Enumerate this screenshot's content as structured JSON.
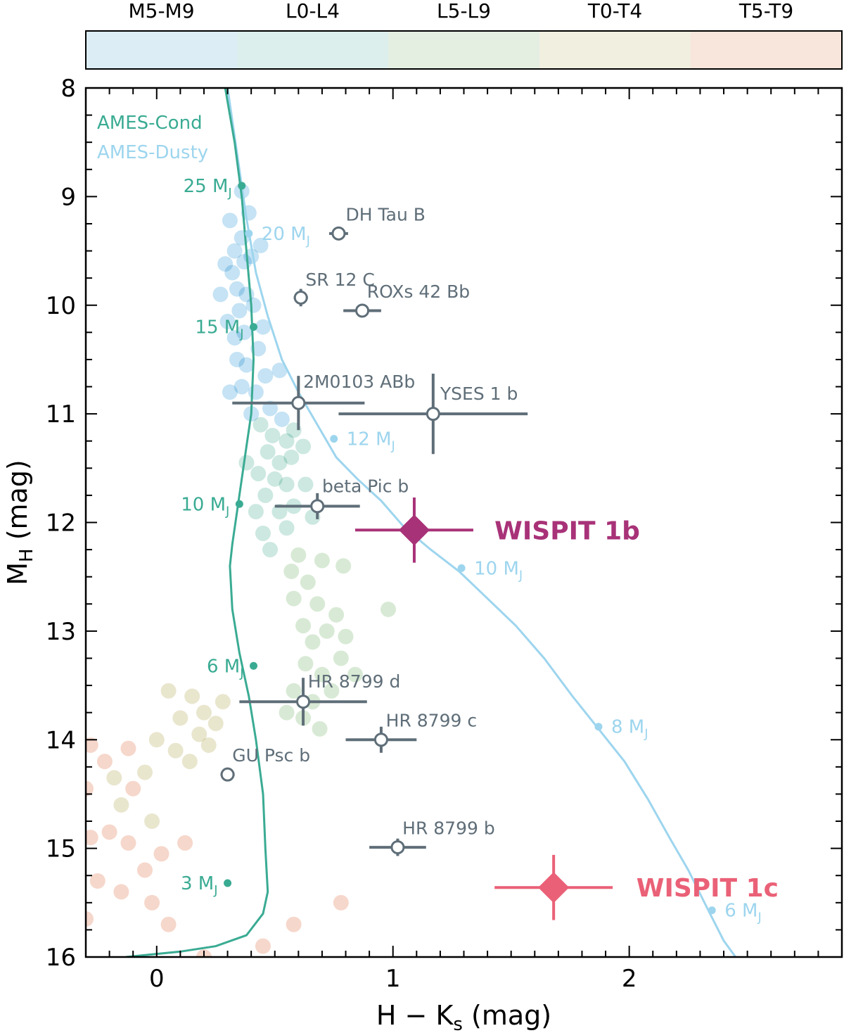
{
  "chart_data": {
    "type": "scatter",
    "xlabel": "H − K",
    "xlabel_sub": "s",
    "xlabel_unit": " (mag)",
    "ylabel": "M",
    "ylabel_sub": "H",
    "ylabel_unit": " (mag)",
    "xlim": [
      -0.3,
      2.9
    ],
    "ylim": [
      16,
      8
    ],
    "y_inverted": true,
    "xticks": [
      0,
      1,
      2
    ],
    "yticks": [
      8,
      9,
      10,
      11,
      12,
      13,
      14,
      15,
      16
    ],
    "spectral_bands": [
      {
        "label": "M5-M9",
        "color": "#dcedf5"
      },
      {
        "label": "L0-L4",
        "color": "#dcefec"
      },
      {
        "label": "L5-L9",
        "color": "#e4efe2"
      },
      {
        "label": "T0-T4",
        "color": "#f1efe0"
      },
      {
        "label": "T5-T9",
        "color": "#f8e5db"
      }
    ],
    "legend": [
      {
        "label": "AMES-Cond",
        "color": "#3aab93"
      },
      {
        "label": "AMES-Dusty",
        "color": "#9dd5ee"
      }
    ],
    "ames_cond_track": {
      "color": "#3aab93",
      "x": [
        0.29,
        0.33,
        0.36,
        0.38,
        0.4,
        0.41,
        0.4,
        0.38,
        0.36,
        0.34,
        0.32,
        0.31,
        0.32,
        0.35,
        0.39,
        0.42,
        0.45,
        0.46,
        0.47,
        0.45,
        0.38,
        0.25,
        0.1,
        -0.13
      ],
      "y": [
        8.0,
        8.5,
        9.0,
        9.5,
        10.0,
        10.5,
        11.0,
        11.3,
        11.6,
        11.9,
        12.2,
        12.4,
        12.8,
        13.2,
        13.6,
        14.0,
        14.5,
        15.0,
        15.4,
        15.6,
        15.8,
        15.9,
        15.95,
        16.0
      ],
      "mass_points": [
        {
          "x": 0.36,
          "y": 8.9,
          "label": "25 M",
          "sub": "J"
        },
        {
          "x": 0.41,
          "y": 10.2,
          "label": "15 M",
          "sub": "J"
        },
        {
          "x": 0.35,
          "y": 11.83,
          "label": "10 M",
          "sub": "J"
        },
        {
          "x": 0.41,
          "y": 13.32,
          "label": "6 M",
          "sub": "J"
        },
        {
          "x": 0.3,
          "y": 15.32,
          "label": "3 M",
          "sub": "J"
        }
      ]
    },
    "ames_dusty_track": {
      "color": "#9dd5ee",
      "x": [
        0.3,
        0.34,
        0.38,
        0.42,
        0.47,
        0.53,
        0.6,
        0.68,
        0.76,
        0.85,
        0.95,
        1.05,
        1.16,
        1.28,
        1.4,
        1.52,
        1.64,
        1.76,
        1.87,
        1.98,
        2.08,
        2.17,
        2.25,
        2.33,
        2.4,
        2.45
      ],
      "y": [
        8.0,
        8.6,
        9.2,
        9.7,
        10.1,
        10.5,
        10.8,
        11.1,
        11.4,
        11.6,
        11.8,
        12.05,
        12.25,
        12.45,
        12.7,
        12.95,
        13.25,
        13.6,
        13.9,
        14.2,
        14.55,
        14.9,
        15.2,
        15.55,
        15.85,
        16.0
      ],
      "mass_points": [
        {
          "x": 0.39,
          "y": 9.34,
          "label": "20 M",
          "sub": "J"
        },
        {
          "x": 0.75,
          "y": 11.23,
          "label": "12 M",
          "sub": "J"
        },
        {
          "x": 1.29,
          "y": 12.42,
          "label": "10 M",
          "sub": "J"
        },
        {
          "x": 1.87,
          "y": 13.88,
          "label": "8 M",
          "sub": "J"
        },
        {
          "x": 2.35,
          "y": 15.57,
          "label": "6 M",
          "sub": "J"
        }
      ]
    },
    "field_dwarfs": [
      {
        "x": 0.31,
        "y": 9.22,
        "band": 0
      },
      {
        "x": 0.33,
        "y": 9.5,
        "band": 0
      },
      {
        "x": 0.36,
        "y": 9.38,
        "band": 0
      },
      {
        "x": 0.29,
        "y": 9.62,
        "band": 0
      },
      {
        "x": 0.32,
        "y": 9.7,
        "band": 0
      },
      {
        "x": 0.34,
        "y": 9.85,
        "band": 0
      },
      {
        "x": 0.37,
        "y": 9.6,
        "band": 0
      },
      {
        "x": 0.4,
        "y": 9.55,
        "band": 0
      },
      {
        "x": 0.38,
        "y": 9.9,
        "band": 0
      },
      {
        "x": 0.35,
        "y": 10.05,
        "band": 0
      },
      {
        "x": 0.3,
        "y": 10.15,
        "band": 0
      },
      {
        "x": 0.27,
        "y": 9.9,
        "band": 0
      },
      {
        "x": 0.33,
        "y": 10.3,
        "band": 0
      },
      {
        "x": 0.37,
        "y": 10.25,
        "band": 0
      },
      {
        "x": 0.41,
        "y": 10.0,
        "band": 0
      },
      {
        "x": 0.43,
        "y": 10.4,
        "band": 0
      },
      {
        "x": 0.38,
        "y": 10.55,
        "band": 0
      },
      {
        "x": 0.34,
        "y": 10.5,
        "band": 0
      },
      {
        "x": 0.45,
        "y": 10.2,
        "band": 0
      },
      {
        "x": 0.39,
        "y": 9.15,
        "band": 0
      },
      {
        "x": 0.44,
        "y": 9.45,
        "band": 0
      },
      {
        "x": 0.36,
        "y": 8.95,
        "band": 0
      },
      {
        "x": 0.46,
        "y": 10.65,
        "band": 0
      },
      {
        "x": 0.42,
        "y": 10.8,
        "band": 0
      },
      {
        "x": 0.31,
        "y": 10.8,
        "band": 0
      },
      {
        "x": 0.36,
        "y": 10.75,
        "band": 0
      },
      {
        "x": 0.48,
        "y": 10.95,
        "band": 0
      },
      {
        "x": 0.4,
        "y": 11.0,
        "band": 0
      },
      {
        "x": 0.52,
        "y": 10.6,
        "band": 0
      },
      {
        "x": 0.53,
        "y": 11.05,
        "band": 0
      },
      {
        "x": 0.44,
        "y": 11.1,
        "band": 1
      },
      {
        "x": 0.49,
        "y": 11.2,
        "band": 1
      },
      {
        "x": 0.55,
        "y": 11.25,
        "band": 1
      },
      {
        "x": 0.58,
        "y": 11.15,
        "band": 1
      },
      {
        "x": 0.47,
        "y": 11.35,
        "band": 1
      },
      {
        "x": 0.52,
        "y": 11.45,
        "band": 1
      },
      {
        "x": 0.57,
        "y": 11.4,
        "band": 1
      },
      {
        "x": 0.62,
        "y": 11.3,
        "band": 1
      },
      {
        "x": 0.43,
        "y": 11.55,
        "band": 1
      },
      {
        "x": 0.5,
        "y": 11.6,
        "band": 1
      },
      {
        "x": 0.55,
        "y": 11.65,
        "band": 1
      },
      {
        "x": 0.46,
        "y": 11.75,
        "band": 1
      },
      {
        "x": 0.42,
        "y": 11.9,
        "band": 1
      },
      {
        "x": 0.52,
        "y": 11.9,
        "band": 1
      },
      {
        "x": 0.58,
        "y": 11.85,
        "band": 1
      },
      {
        "x": 0.45,
        "y": 12.1,
        "band": 1
      },
      {
        "x": 0.55,
        "y": 12.05,
        "band": 1
      },
      {
        "x": 0.63,
        "y": 11.65,
        "band": 1
      },
      {
        "x": 0.66,
        "y": 11.95,
        "band": 1
      },
      {
        "x": 0.48,
        "y": 12.25,
        "band": 1
      },
      {
        "x": 0.38,
        "y": 11.45,
        "band": 1
      },
      {
        "x": 0.6,
        "y": 12.3,
        "band": 2
      },
      {
        "x": 0.64,
        "y": 12.55,
        "band": 2
      },
      {
        "x": 0.58,
        "y": 12.7,
        "band": 2
      },
      {
        "x": 0.68,
        "y": 12.75,
        "band": 2
      },
      {
        "x": 0.7,
        "y": 12.35,
        "band": 2
      },
      {
        "x": 0.62,
        "y": 12.95,
        "band": 2
      },
      {
        "x": 0.66,
        "y": 13.1,
        "band": 2
      },
      {
        "x": 0.72,
        "y": 13.0,
        "band": 2
      },
      {
        "x": 0.76,
        "y": 12.85,
        "band": 2
      },
      {
        "x": 0.8,
        "y": 13.05,
        "band": 2
      },
      {
        "x": 0.63,
        "y": 13.3,
        "band": 2
      },
      {
        "x": 0.7,
        "y": 13.4,
        "band": 2
      },
      {
        "x": 0.78,
        "y": 13.25,
        "band": 2
      },
      {
        "x": 0.58,
        "y": 13.55,
        "band": 2
      },
      {
        "x": 0.66,
        "y": 13.65,
        "band": 2
      },
      {
        "x": 0.74,
        "y": 13.55,
        "band": 2
      },
      {
        "x": 0.62,
        "y": 13.8,
        "band": 2
      },
      {
        "x": 0.69,
        "y": 13.9,
        "band": 2
      },
      {
        "x": 0.55,
        "y": 13.75,
        "band": 2
      },
      {
        "x": 0.84,
        "y": 13.4,
        "band": 2
      },
      {
        "x": 0.98,
        "y": 12.8,
        "band": 2
      },
      {
        "x": 0.79,
        "y": 12.4,
        "band": 2
      },
      {
        "x": 0.57,
        "y": 12.45,
        "band": 2
      },
      {
        "x": 0.05,
        "y": 13.55,
        "band": 3
      },
      {
        "x": 0.15,
        "y": 13.6,
        "band": 3
      },
      {
        "x": 0.1,
        "y": 13.8,
        "band": 3
      },
      {
        "x": 0.2,
        "y": 13.75,
        "band": 3
      },
      {
        "x": 0.25,
        "y": 13.85,
        "band": 3
      },
      {
        "x": 0.18,
        "y": 13.95,
        "band": 3
      },
      {
        "x": 0.0,
        "y": 14.0,
        "band": 3
      },
      {
        "x": 0.08,
        "y": 14.1,
        "band": 3
      },
      {
        "x": 0.22,
        "y": 14.05,
        "band": 3
      },
      {
        "x": 0.28,
        "y": 13.65,
        "band": 3
      },
      {
        "x": -0.05,
        "y": 14.3,
        "band": 3
      },
      {
        "x": 0.14,
        "y": 14.2,
        "band": 3
      },
      {
        "x": -0.15,
        "y": 14.6,
        "band": 3
      },
      {
        "x": -0.02,
        "y": 14.75,
        "band": 3
      },
      {
        "x": -0.18,
        "y": 14.35,
        "band": 3
      },
      {
        "x": -0.28,
        "y": 14.05,
        "band": 4
      },
      {
        "x": -0.22,
        "y": 14.2,
        "band": 4
      },
      {
        "x": -0.3,
        "y": 14.45,
        "band": 4
      },
      {
        "x": -0.1,
        "y": 14.45,
        "band": 4
      },
      {
        "x": -0.2,
        "y": 14.85,
        "band": 4
      },
      {
        "x": -0.12,
        "y": 14.95,
        "band": 4
      },
      {
        "x": -0.28,
        "y": 14.9,
        "band": 4
      },
      {
        "x": 0.02,
        "y": 15.05,
        "band": 4
      },
      {
        "x": -0.05,
        "y": 15.2,
        "band": 4
      },
      {
        "x": 0.12,
        "y": 14.95,
        "band": 4
      },
      {
        "x": -0.25,
        "y": 15.3,
        "band": 4
      },
      {
        "x": -0.15,
        "y": 15.4,
        "band": 4
      },
      {
        "x": -0.02,
        "y": 15.5,
        "band": 4
      },
      {
        "x": -0.3,
        "y": 15.65,
        "band": 4
      },
      {
        "x": 0.05,
        "y": 15.7,
        "band": 4
      },
      {
        "x": 0.45,
        "y": 15.9,
        "band": 4
      },
      {
        "x": 0.78,
        "y": 15.5,
        "band": 4
      },
      {
        "x": 0.58,
        "y": 15.7,
        "band": 4
      },
      {
        "x": 0.2,
        "y": 16.0,
        "band": 4
      },
      {
        "x": -0.12,
        "y": 14.08,
        "band": 4
      }
    ],
    "objects": [
      {
        "name": "DH Tau B",
        "x": 0.77,
        "y": 9.34,
        "xerr": 0.04,
        "yerr": 0.03,
        "lx": 0.8,
        "ly": 9.22
      },
      {
        "name": "SR 12 C",
        "x": 0.61,
        "y": 9.93,
        "xerr": 0.03,
        "yerr": 0.08,
        "lx": 0.63,
        "ly": 9.82
      },
      {
        "name": "ROXs 42 Bb",
        "x": 0.87,
        "y": 10.05,
        "xerr": 0.08,
        "yerr": 0.02,
        "lx": 0.89,
        "ly": 9.93
      },
      {
        "name": "2M0103 ABb",
        "x": 0.6,
        "y": 10.9,
        "xerr": 0.28,
        "yerr": 0.25,
        "lx": 0.62,
        "ly": 10.76
      },
      {
        "name": "YSES 1 b",
        "x": 1.17,
        "y": 11.0,
        "xerr": 0.4,
        "yerr": 0.37,
        "lx": 1.2,
        "ly": 10.87
      },
      {
        "name": "beta Pic b",
        "x": 0.68,
        "y": 11.85,
        "xerr": 0.18,
        "yerr": 0.12,
        "lx": 0.7,
        "ly": 11.72
      },
      {
        "name": "HR 8799 d",
        "x": 0.62,
        "y": 13.65,
        "xerr": 0.27,
        "yerr": 0.22,
        "lx": 0.64,
        "ly": 13.52
      },
      {
        "name": "HR 8799 c",
        "x": 0.95,
        "y": 14.0,
        "xerr": 0.15,
        "yerr": 0.12,
        "lx": 0.97,
        "ly": 13.88
      },
      {
        "name": "GU Psc b",
        "x": 0.3,
        "y": 14.32,
        "xerr": 0.03,
        "yerr": 0.03,
        "lx": 0.32,
        "ly": 14.2
      },
      {
        "name": "HR 8799 b",
        "x": 1.02,
        "y": 14.99,
        "xerr": 0.12,
        "yerr": 0.08,
        "lx": 1.04,
        "ly": 14.87
      }
    ],
    "wispit": [
      {
        "name": "WISPIT 1b",
        "x": 1.09,
        "y": 12.07,
        "xerr": 0.25,
        "yerr": 0.3,
        "color": "#a83278",
        "lx": 1.43,
        "ly": 12.07
      },
      {
        "name": "WISPIT 1c",
        "x": 1.68,
        "y": 15.36,
        "xerr": 0.25,
        "yerr": 0.3,
        "color": "#ea6177",
        "lx": 2.03,
        "ly": 15.36
      }
    ]
  }
}
